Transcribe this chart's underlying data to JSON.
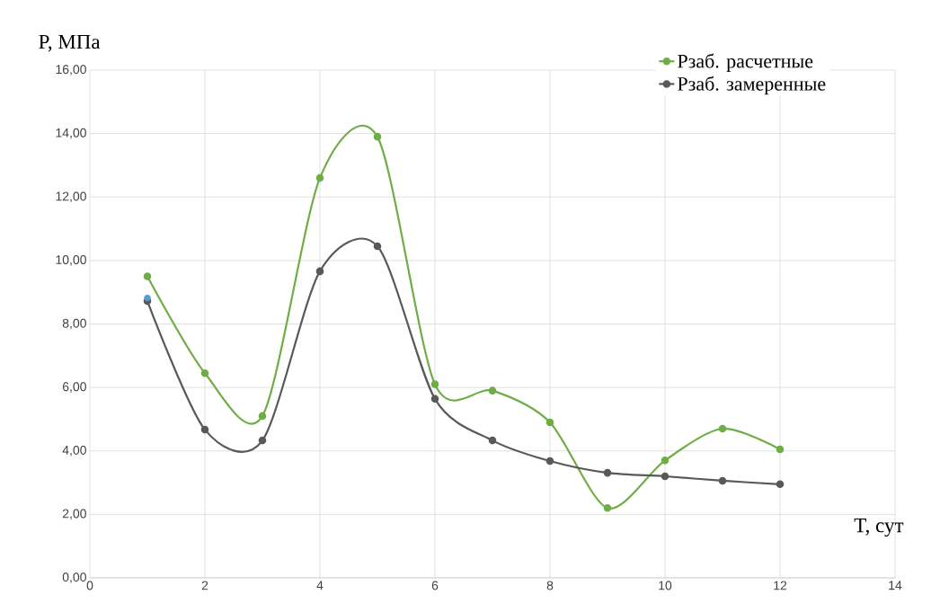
{
  "chart_data": {
    "type": "line",
    "xlabel": "T, сут",
    "ylabel": "P, МПа",
    "x": [
      1,
      2,
      3,
      4,
      5,
      6,
      7,
      8,
      9,
      10,
      11,
      12
    ],
    "series": [
      {
        "name": "Pзаб. расчетные",
        "color": "#70ad47",
        "values": [
          9.5,
          6.45,
          5.1,
          12.6,
          13.9,
          6.1,
          5.9,
          4.9,
          2.2,
          3.7,
          4.7,
          4.05
        ]
      },
      {
        "name": "Pзаб. замеренные",
        "color": "#595959",
        "values": [
          8.72,
          4.67,
          4.33,
          9.66,
          10.45,
          5.64,
          4.33,
          3.68,
          3.31,
          3.2,
          3.06,
          2.95
        ]
      },
      {
        "type": "scatter",
        "color": "#5b9bd5",
        "x": [
          1
        ],
        "values": [
          8.82
        ]
      }
    ],
    "xlim": [
      0,
      14
    ],
    "xticks": [
      0,
      2,
      4,
      6,
      8,
      10,
      12,
      14
    ],
    "ylim": [
      0,
      16
    ],
    "yticks": [
      {
        "value": 0,
        "label": "0,00"
      },
      {
        "value": 2,
        "label": "2,00"
      },
      {
        "value": 4,
        "label": "4,00"
      },
      {
        "value": 6,
        "label": "6,00"
      },
      {
        "value": 8,
        "label": "8,00"
      },
      {
        "value": 10,
        "label": "10,00"
      },
      {
        "value": 12,
        "label": "12,00"
      },
      {
        "value": 14,
        "label": "14,00"
      },
      {
        "value": 16,
        "label": "16,00"
      }
    ],
    "grid": true,
    "legend": "top right",
    "marker": "circle",
    "line_style": "solid"
  }
}
